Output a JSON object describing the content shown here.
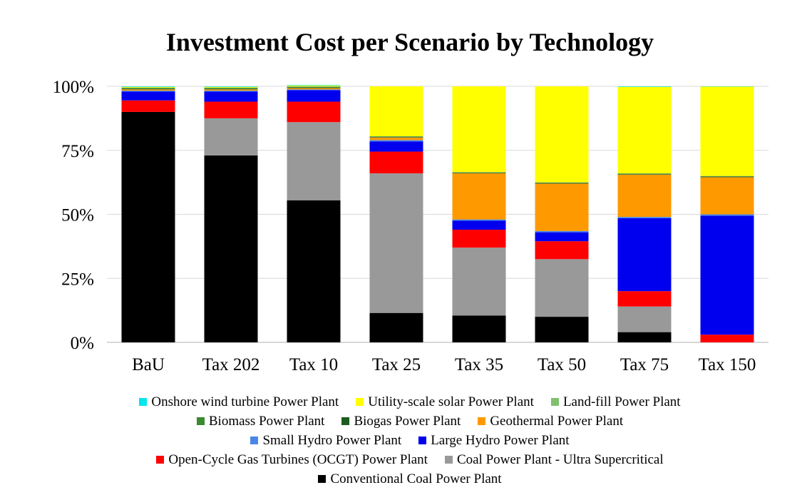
{
  "chart_data": {
    "type": "bar",
    "stacked": true,
    "title": "Investment Cost per Scenario by Technology",
    "xlabel": "",
    "ylabel": "",
    "ylim": [
      0,
      100
    ],
    "yticks": [
      "0%",
      "25%",
      "50%",
      "75%",
      "100%"
    ],
    "grid": true,
    "legend_position": "bottom",
    "categories": [
      "BaU",
      "Tax 202",
      "Tax 10",
      "Tax 25",
      "Tax 35",
      "Tax 50",
      "Tax 75",
      "Tax 150"
    ],
    "series": [
      {
        "name": "Conventional Coal Power Plant",
        "color": "#000000",
        "values": [
          90,
          73,
          55.5,
          11.5,
          10.5,
          10,
          4,
          0
        ]
      },
      {
        "name": "Coal Power Plant - Ultra Supercritical",
        "color": "#999999",
        "values": [
          0,
          14.5,
          30.5,
          54.5,
          26.5,
          22.5,
          10,
          0
        ]
      },
      {
        "name": "Open-Cycle Gas Turbines (OCGT) Power Plant",
        "color": "#ff0000",
        "values": [
          4.5,
          6.5,
          8,
          8.5,
          7,
          7,
          6,
          3
        ]
      },
      {
        "name": "Large Hydro Power Plant",
        "color": "#0000ee",
        "values": [
          3.5,
          4,
          4.5,
          4,
          3.5,
          3.5,
          28.5,
          46.5
        ]
      },
      {
        "name": "Small Hydro Power Plant",
        "color": "#4a86e8",
        "values": [
          0.3,
          0.3,
          0.3,
          0.5,
          0.5,
          0.5,
          0.5,
          0.5
        ]
      },
      {
        "name": "Geothermal Power Plant",
        "color": "#ff9900",
        "values": [
          0.5,
          0.5,
          0.5,
          1,
          18,
          18.5,
          16.5,
          14.5
        ]
      },
      {
        "name": "Biogas Power Plant",
        "color": "#1e5c1e",
        "values": [
          0.2,
          0.2,
          0.2,
          0.2,
          0.2,
          0.2,
          0.2,
          0.2
        ]
      },
      {
        "name": "Biomass Power Plant",
        "color": "#3a8a2e",
        "values": [
          0.3,
          0.3,
          0.3,
          0.2,
          0.2,
          0.2,
          0.2,
          0.2
        ]
      },
      {
        "name": "Land-fill Power Plant",
        "color": "#7fc06e",
        "values": [
          0.2,
          0.2,
          0.2,
          0.1,
          0.1,
          0.1,
          0.1,
          0.1
        ]
      },
      {
        "name": "Utility-scale solar Power Plant",
        "color": "#ffff00",
        "values": [
          0.3,
          0.3,
          0.3,
          19.5,
          33.5,
          37.5,
          33.8,
          34.9
        ]
      },
      {
        "name": "Onshore wind turbine Power Plant",
        "color": "#00e5ee",
        "values": [
          0.2,
          0.2,
          0.2,
          0,
          0,
          0,
          0.2,
          0.1
        ]
      }
    ]
  },
  "legend_rows": [
    [
      "Onshore wind turbine Power Plant",
      "Utility-scale solar Power Plant",
      "Land-fill Power Plant"
    ],
    [
      "Biomass Power Plant",
      "Biogas Power Plant",
      "Geothermal Power Plant"
    ],
    [
      "Small Hydro Power Plant",
      "Large Hydro Power Plant"
    ],
    [
      "Open-Cycle Gas Turbines (OCGT) Power Plant",
      "Coal Power Plant - Ultra Supercritical"
    ],
    [
      "Conventional Coal Power Plant"
    ]
  ]
}
